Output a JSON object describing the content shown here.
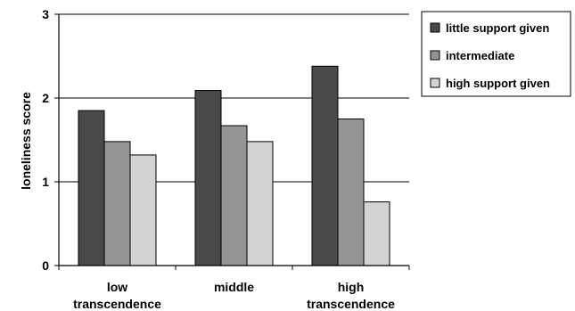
{
  "chart_data": {
    "type": "bar",
    "title": "",
    "xlabel": "",
    "ylabel": "loneliness score",
    "ylim": [
      0,
      3
    ],
    "yticks": [
      0,
      1,
      2,
      3
    ],
    "grid": true,
    "legend_position": "right",
    "categories": [
      [
        "low",
        "transcendence"
      ],
      [
        "middle"
      ],
      [
        "high",
        "transcendence"
      ]
    ],
    "series": [
      {
        "name": "little support given",
        "color": "#4a4a4a",
        "values": [
          1.85,
          2.09,
          2.38
        ]
      },
      {
        "name": "intermediate",
        "color": "#959595",
        "values": [
          1.48,
          1.67,
          1.75
        ]
      },
      {
        "name": "high support given",
        "color": "#d3d3d3",
        "values": [
          1.32,
          1.48,
          0.76
        ]
      }
    ]
  }
}
